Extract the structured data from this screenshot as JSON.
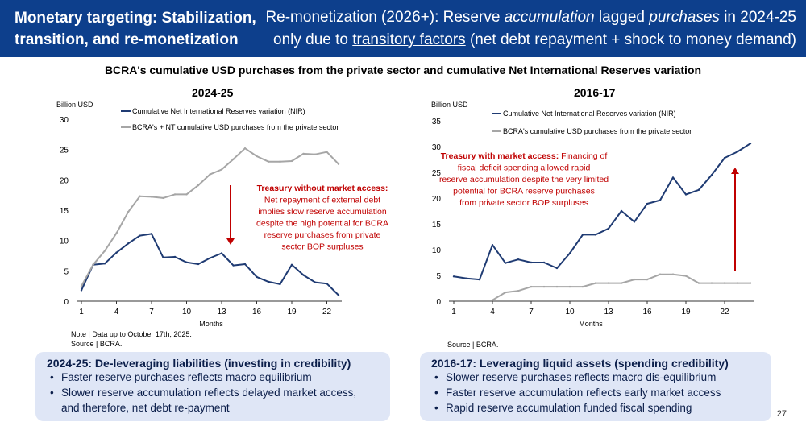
{
  "header": {
    "left_title": "Monetary targeting: Stabilization, transition, and re-monetization",
    "right_line1_a": "Re-monetization (2026+): Reserve ",
    "right_line1_b": "accumulation",
    "right_line1_c": " lagged ",
    "right_line1_d": "purchases",
    "right_line1_e": " in 2024-25",
    "right_line2_a": "only due to ",
    "right_line2_b": "transitory factors",
    "right_line2_c": " (net debt repayment + shock to money demand)"
  },
  "main_title": "BCRA's cumulative USD purchases from the private sector and cumulative Net International Reserves variation",
  "chart_data": [
    {
      "type": "line",
      "title": "2024-25",
      "ylabel": "Billion USD",
      "xlabel": "Months",
      "ylim": [
        0,
        30
      ],
      "yticks": [
        0,
        5,
        10,
        15,
        20,
        25,
        30
      ],
      "xlim": [
        1,
        23
      ],
      "xticks": [
        1,
        4,
        7,
        10,
        13,
        16,
        19,
        22
      ],
      "series": [
        {
          "name": "Cumulative Net International Reserves variation (NIR)",
          "color": "#1f3b73",
          "x": [
            1,
            2,
            3,
            4,
            5,
            6,
            7,
            8,
            9,
            10,
            11,
            12,
            13,
            14,
            15,
            16,
            17,
            18,
            19,
            20,
            21,
            22,
            23
          ],
          "values": [
            1.8,
            6.0,
            6.2,
            8.0,
            9.5,
            10.8,
            11.1,
            7.2,
            7.3,
            6.4,
            6.1,
            7.1,
            7.9,
            5.9,
            6.1,
            4.0,
            3.2,
            2.8,
            6.0,
            4.3,
            3.1,
            2.9,
            1.0
          ]
        },
        {
          "name": "BCRA's + NT cumulative USD purchases from the private sector",
          "color": "#a6a6a6",
          "x": [
            1,
            2,
            3,
            4,
            5,
            6,
            7,
            8,
            9,
            10,
            11,
            12,
            13,
            14,
            15,
            16,
            17,
            18,
            19,
            20,
            21,
            22,
            23
          ],
          "values": [
            2.5,
            6.0,
            8.3,
            11.2,
            14.7,
            17.3,
            17.2,
            17.0,
            17.6,
            17.6,
            19.1,
            20.9,
            21.7,
            23.4,
            25.2,
            23.9,
            23.0,
            23.0,
            23.1,
            24.3,
            24.2,
            24.6,
            22.6
          ]
        }
      ],
      "annotation": {
        "title": "Treasury without market access:",
        "lines": [
          "Net repayment of external debt",
          "implies slow reserve accumulation",
          "despite the high potential for BCRA",
          "reserve purchases from private",
          "sector BOP surpluses"
        ]
      },
      "note_line1": "Note | Data up to October 17th, 2025.",
      "note_line2": "Source | BCRA."
    },
    {
      "type": "line",
      "title": "2016-17",
      "ylabel": "Billion USD",
      "xlabel": "Months",
      "ylim": [
        0,
        35
      ],
      "yticks": [
        0,
        5,
        10,
        15,
        20,
        25,
        30,
        35
      ],
      "xlim": [
        1,
        24
      ],
      "xticks": [
        1,
        4,
        7,
        10,
        13,
        16,
        19,
        22
      ],
      "series": [
        {
          "name": "Cumulative Net International Reserves variation (NIR)",
          "color": "#1f3b73",
          "x": [
            1,
            2,
            3,
            4,
            5,
            6,
            7,
            8,
            9,
            10,
            11,
            12,
            13,
            14,
            15,
            16,
            17,
            18,
            19,
            20,
            21,
            22,
            23,
            24
          ],
          "values": [
            4.8,
            4.4,
            4.2,
            10.9,
            7.4,
            8.1,
            7.5,
            7.5,
            6.4,
            9.3,
            12.9,
            12.9,
            14.1,
            17.5,
            15.4,
            18.9,
            19.6,
            24.0,
            20.7,
            21.6,
            24.5,
            27.8,
            29.0,
            30.6
          ]
        },
        {
          "name": "BCRA's cumulative USD purchases from the private sector",
          "color": "#a6a6a6",
          "x": [
            4,
            5,
            6,
            7,
            8,
            9,
            10,
            11,
            12,
            13,
            14,
            15,
            16,
            17,
            18,
            19,
            20,
            21,
            22,
            23,
            24
          ],
          "values": [
            0.2,
            1.7,
            2.0,
            2.8,
            2.8,
            2.8,
            2.8,
            2.8,
            3.5,
            3.5,
            3.5,
            4.2,
            4.2,
            5.2,
            5.2,
            4.9,
            3.5,
            3.5,
            3.5,
            3.5,
            3.5
          ]
        }
      ],
      "annotation": {
        "title": "Treasury with market access:",
        "title_rest": " Financing of",
        "lines": [
          "fiscal deficit spending allowed rapid",
          "reserve accumulation despite the very limited",
          "potential for BCRA reserve purchases",
          "from private sector BOP surpluses"
        ]
      },
      "note_line1": "Source | BCRA."
    }
  ],
  "box_left": {
    "title": "2024-25: De-leveraging liabilities (investing in credibility)",
    "bullets": [
      "Faster reserve purchases reflects macro equilibrium",
      "Slower reserve accumulation reflects delayed market access,",
      "and therefore, net debt re-payment"
    ]
  },
  "box_right": {
    "title": "2016-17: Leveraging liquid assets (spending credibility)",
    "bullets": [
      "Slower reserve purchases reflects macro dis-equilibrium",
      "Faster reserve accumulation reflects early market access",
      "Rapid reserve accumulation funded fiscal spending"
    ]
  },
  "page_number": "27",
  "colors": {
    "header_bg": "#0d3f8c",
    "annotation_red": "#c00000",
    "nir_line": "#1f3b73",
    "purchases_line": "#a6a6a6"
  }
}
